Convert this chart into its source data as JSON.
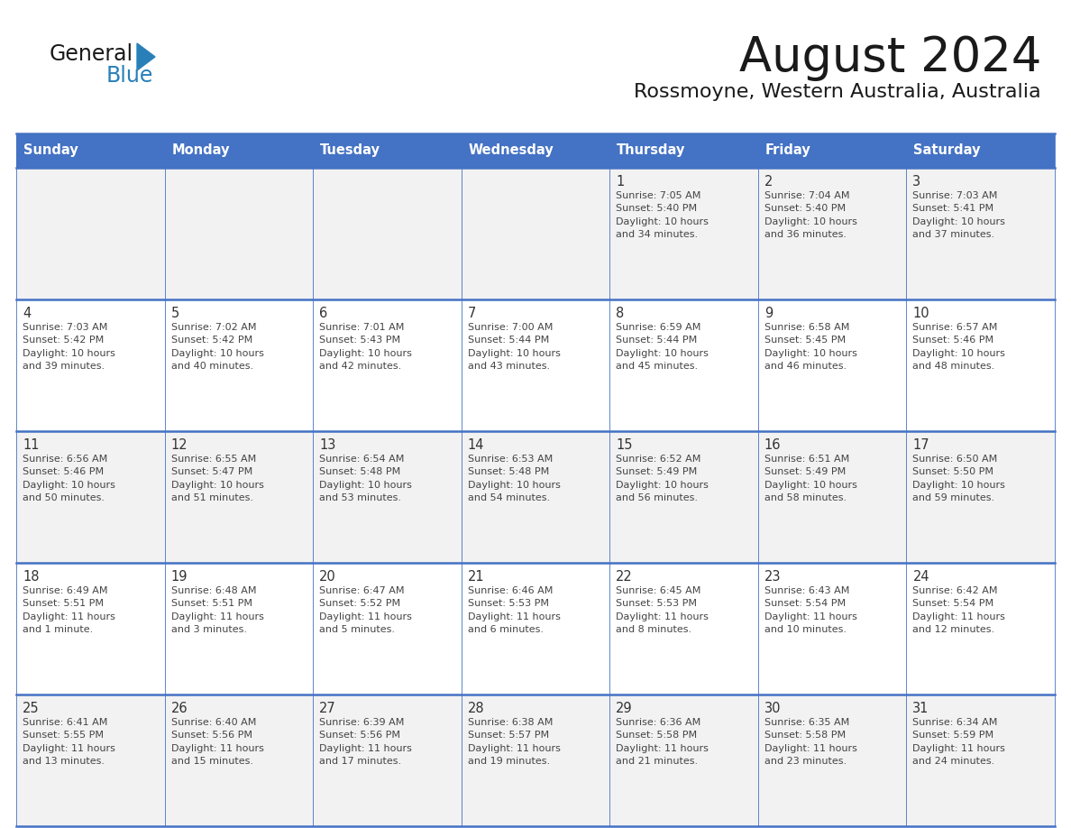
{
  "title": "August 2024",
  "subtitle": "Rossmoyne, Western Australia, Australia",
  "days_of_week": [
    "Sunday",
    "Monday",
    "Tuesday",
    "Wednesday",
    "Thursday",
    "Friday",
    "Saturday"
  ],
  "header_bg_color": "#4472C4",
  "header_text_color": "#FFFFFF",
  "cell_bg_even": "#F2F2F2",
  "cell_bg_odd": "#FFFFFF",
  "cell_border_color": "#4472C4",
  "day_number_color": "#333333",
  "info_text_color": "#444444",
  "title_color": "#1a1a1a",
  "subtitle_color": "#1a1a1a",
  "logo_general_color": "#1a1a1a",
  "logo_blue_color": "#2980B9",
  "weeks": [
    {
      "days": [
        {
          "date": "",
          "info": ""
        },
        {
          "date": "",
          "info": ""
        },
        {
          "date": "",
          "info": ""
        },
        {
          "date": "",
          "info": ""
        },
        {
          "date": "1",
          "info": "Sunrise: 7:05 AM\nSunset: 5:40 PM\nDaylight: 10 hours\nand 34 minutes."
        },
        {
          "date": "2",
          "info": "Sunrise: 7:04 AM\nSunset: 5:40 PM\nDaylight: 10 hours\nand 36 minutes."
        },
        {
          "date": "3",
          "info": "Sunrise: 7:03 AM\nSunset: 5:41 PM\nDaylight: 10 hours\nand 37 minutes."
        }
      ]
    },
    {
      "days": [
        {
          "date": "4",
          "info": "Sunrise: 7:03 AM\nSunset: 5:42 PM\nDaylight: 10 hours\nand 39 minutes."
        },
        {
          "date": "5",
          "info": "Sunrise: 7:02 AM\nSunset: 5:42 PM\nDaylight: 10 hours\nand 40 minutes."
        },
        {
          "date": "6",
          "info": "Sunrise: 7:01 AM\nSunset: 5:43 PM\nDaylight: 10 hours\nand 42 minutes."
        },
        {
          "date": "7",
          "info": "Sunrise: 7:00 AM\nSunset: 5:44 PM\nDaylight: 10 hours\nand 43 minutes."
        },
        {
          "date": "8",
          "info": "Sunrise: 6:59 AM\nSunset: 5:44 PM\nDaylight: 10 hours\nand 45 minutes."
        },
        {
          "date": "9",
          "info": "Sunrise: 6:58 AM\nSunset: 5:45 PM\nDaylight: 10 hours\nand 46 minutes."
        },
        {
          "date": "10",
          "info": "Sunrise: 6:57 AM\nSunset: 5:46 PM\nDaylight: 10 hours\nand 48 minutes."
        }
      ]
    },
    {
      "days": [
        {
          "date": "11",
          "info": "Sunrise: 6:56 AM\nSunset: 5:46 PM\nDaylight: 10 hours\nand 50 minutes."
        },
        {
          "date": "12",
          "info": "Sunrise: 6:55 AM\nSunset: 5:47 PM\nDaylight: 10 hours\nand 51 minutes."
        },
        {
          "date": "13",
          "info": "Sunrise: 6:54 AM\nSunset: 5:48 PM\nDaylight: 10 hours\nand 53 minutes."
        },
        {
          "date": "14",
          "info": "Sunrise: 6:53 AM\nSunset: 5:48 PM\nDaylight: 10 hours\nand 54 minutes."
        },
        {
          "date": "15",
          "info": "Sunrise: 6:52 AM\nSunset: 5:49 PM\nDaylight: 10 hours\nand 56 minutes."
        },
        {
          "date": "16",
          "info": "Sunrise: 6:51 AM\nSunset: 5:49 PM\nDaylight: 10 hours\nand 58 minutes."
        },
        {
          "date": "17",
          "info": "Sunrise: 6:50 AM\nSunset: 5:50 PM\nDaylight: 10 hours\nand 59 minutes."
        }
      ]
    },
    {
      "days": [
        {
          "date": "18",
          "info": "Sunrise: 6:49 AM\nSunset: 5:51 PM\nDaylight: 11 hours\nand 1 minute."
        },
        {
          "date": "19",
          "info": "Sunrise: 6:48 AM\nSunset: 5:51 PM\nDaylight: 11 hours\nand 3 minutes."
        },
        {
          "date": "20",
          "info": "Sunrise: 6:47 AM\nSunset: 5:52 PM\nDaylight: 11 hours\nand 5 minutes."
        },
        {
          "date": "21",
          "info": "Sunrise: 6:46 AM\nSunset: 5:53 PM\nDaylight: 11 hours\nand 6 minutes."
        },
        {
          "date": "22",
          "info": "Sunrise: 6:45 AM\nSunset: 5:53 PM\nDaylight: 11 hours\nand 8 minutes."
        },
        {
          "date": "23",
          "info": "Sunrise: 6:43 AM\nSunset: 5:54 PM\nDaylight: 11 hours\nand 10 minutes."
        },
        {
          "date": "24",
          "info": "Sunrise: 6:42 AM\nSunset: 5:54 PM\nDaylight: 11 hours\nand 12 minutes."
        }
      ]
    },
    {
      "days": [
        {
          "date": "25",
          "info": "Sunrise: 6:41 AM\nSunset: 5:55 PM\nDaylight: 11 hours\nand 13 minutes."
        },
        {
          "date": "26",
          "info": "Sunrise: 6:40 AM\nSunset: 5:56 PM\nDaylight: 11 hours\nand 15 minutes."
        },
        {
          "date": "27",
          "info": "Sunrise: 6:39 AM\nSunset: 5:56 PM\nDaylight: 11 hours\nand 17 minutes."
        },
        {
          "date": "28",
          "info": "Sunrise: 6:38 AM\nSunset: 5:57 PM\nDaylight: 11 hours\nand 19 minutes."
        },
        {
          "date": "29",
          "info": "Sunrise: 6:36 AM\nSunset: 5:58 PM\nDaylight: 11 hours\nand 21 minutes."
        },
        {
          "date": "30",
          "info": "Sunrise: 6:35 AM\nSunset: 5:58 PM\nDaylight: 11 hours\nand 23 minutes."
        },
        {
          "date": "31",
          "info": "Sunrise: 6:34 AM\nSunset: 5:59 PM\nDaylight: 11 hours\nand 24 minutes."
        }
      ]
    }
  ]
}
